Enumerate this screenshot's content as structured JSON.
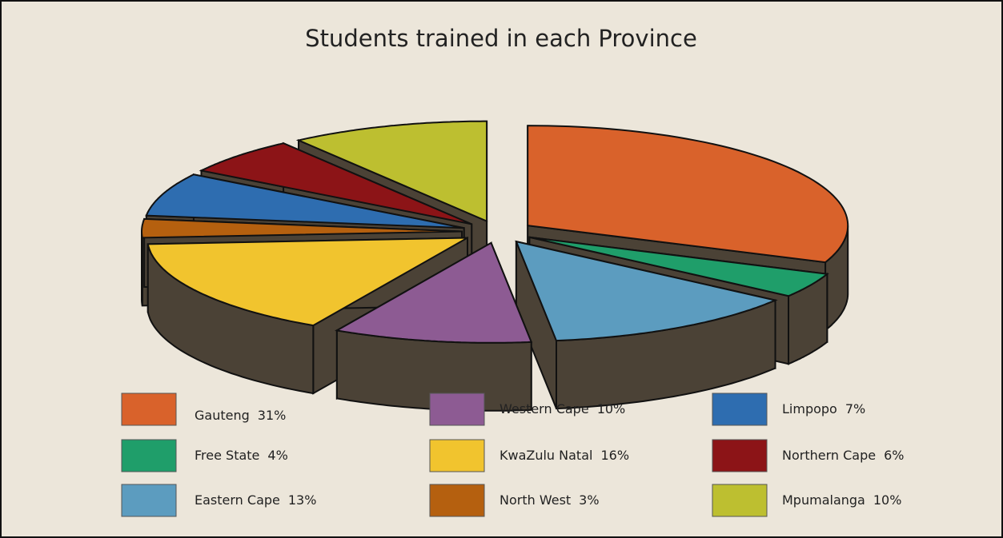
{
  "chart_data": {
    "type": "pie3d",
    "title": "Students trained in each Province",
    "categories": [
      "Gauteng",
      "Free State",
      "Eastern Cape",
      "Western Cape",
      "KwaZulu Natal",
      "North West",
      "Limpopo",
      "Northern Cape",
      "Mpumalanga"
    ],
    "values": [
      31,
      4,
      13,
      10,
      16,
      3,
      7,
      6,
      10
    ],
    "value_labels": [
      "31%",
      "4%",
      "13%",
      "10%",
      "16%",
      "3%",
      "7%",
      "6%",
      "10%"
    ],
    "colors": [
      "#d9622b",
      "#1f9e6a",
      "#5c9cbf",
      "#8d5b93",
      "#f1c42e",
      "#b5600f",
      "#2e6db0",
      "#8c1417",
      "#bdbf30"
    ]
  }
}
